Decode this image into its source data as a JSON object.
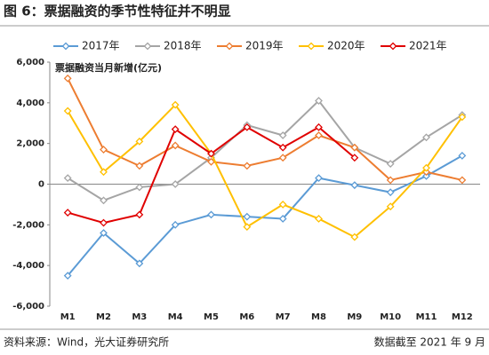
{
  "chart_data": {
    "type": "line",
    "title": "图 6：票据融资的季节性特征并不明显",
    "y_label": "票据融资当月新增(亿元)",
    "source": "资料来源：Wind，光大证券研究所",
    "note": "数据截至 2021 年 9 月",
    "categories": [
      "M1",
      "M2",
      "M3",
      "M4",
      "M5",
      "M6",
      "M7",
      "M8",
      "M9",
      "M10",
      "M11",
      "M12"
    ],
    "ylim": [
      -6000,
      6000
    ],
    "yticks": [
      {
        "value": -6000,
        "label": "-6,000"
      },
      {
        "value": -4000,
        "label": "-4,000"
      },
      {
        "value": -2000,
        "label": "-2,000"
      },
      0,
      {
        "value": 2000,
        "label": "2,000"
      },
      {
        "value": 4000,
        "label": "4,000"
      },
      {
        "value": 6000,
        "label": "6,000"
      }
    ],
    "series": [
      {
        "name": "2017年",
        "color": "#5b9bd5",
        "values": [
          -4500,
          -2400,
          -3900,
          -2000,
          -1500,
          -1600,
          -1700,
          300,
          -50,
          -400,
          400,
          1400
        ]
      },
      {
        "name": "2018年",
        "color": "#a5a5a5",
        "values": [
          300,
          -800,
          -150,
          0,
          1300,
          2900,
          2400,
          4100,
          1800,
          1000,
          2300,
          3400
        ]
      },
      {
        "name": "2019年",
        "color": "#ed7d31",
        "values": [
          5200,
          1700,
          900,
          1900,
          1100,
          900,
          1300,
          2400,
          1800,
          200,
          600,
          200
        ]
      },
      {
        "name": "2020年",
        "color": "#ffc000",
        "values": [
          3600,
          600,
          2100,
          3900,
          1500,
          -2100,
          -1000,
          -1700,
          -2600,
          -1100,
          800,
          3300
        ]
      },
      {
        "name": "2021年",
        "color": "#e00000",
        "values": [
          -1400,
          -1900,
          -1500,
          2700,
          1500,
          2800,
          1800,
          2800,
          1300,
          null,
          null,
          null
        ]
      }
    ]
  }
}
